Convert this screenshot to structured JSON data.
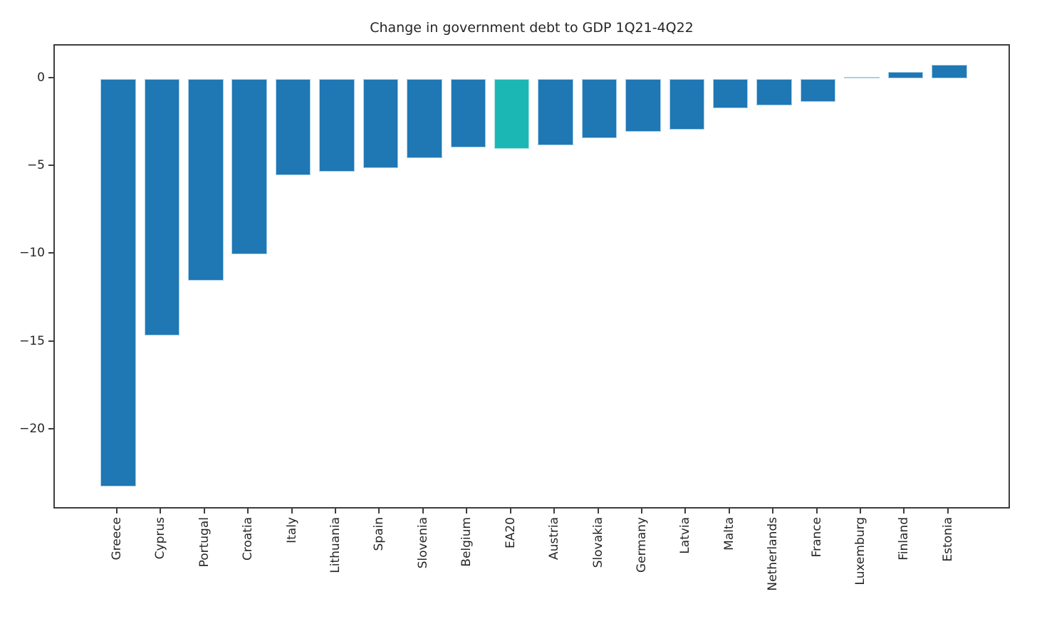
{
  "chart_data": {
    "type": "bar",
    "title": "Change in government debt to GDP 1Q21-4Q22",
    "xlabel": "",
    "ylabel": "",
    "categories": [
      "Greece",
      "Cyprus",
      "Portugal",
      "Croatia",
      "Italy",
      "Lithuania",
      "Spain",
      "Slovenia",
      "Belgium",
      "EA20",
      "Austria",
      "Slovakia",
      "Germany",
      "Latvia",
      "Malta",
      "Netherlands",
      "France",
      "Luxemburg",
      "Finland",
      "Estonia"
    ],
    "values": [
      -23.2,
      -14.6,
      -11.5,
      -10.0,
      -5.5,
      -5.3,
      -5.1,
      -4.5,
      -3.9,
      -4.0,
      -3.8,
      -3.4,
      -3.0,
      -2.9,
      -1.7,
      -1.5,
      -1.3,
      0.1,
      0.4,
      0.8
    ],
    "highlight_category": "EA20",
    "highlight_index": 9,
    "bar_color": "#1f77b4",
    "bar_edge_color": "#a9cfe9",
    "highlight_color": "#1bb7b4",
    "highlight_edge_color": "#aae6e2",
    "axis_color": "#3d3d3d",
    "text_color": "#262626",
    "ylim": [
      -24.5,
      1.9
    ],
    "yticks": [
      {
        "value": 0,
        "label": "0"
      },
      {
        "value": -5,
        "label": "−5"
      },
      {
        "value": -10,
        "label": "−10"
      },
      {
        "value": -15,
        "label": "−15"
      },
      {
        "value": -20,
        "label": "−20"
      }
    ],
    "grid": false,
    "legend": "none",
    "x_label_rotation_deg": 90
  }
}
